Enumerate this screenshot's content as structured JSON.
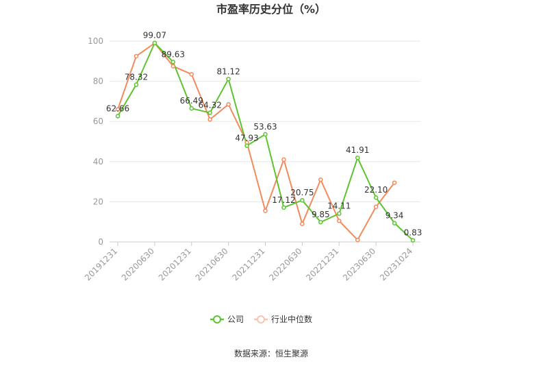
{
  "chart_data": {
    "type": "line",
    "title": "市盈率历史分位（%）",
    "ylim": [
      0,
      100
    ],
    "yticks": [
      0,
      20,
      40,
      60,
      80,
      100
    ],
    "xticks": [
      "20191231",
      "20200630",
      "20201231",
      "20210630",
      "20211231",
      "20220630",
      "20221231",
      "20230630",
      "20231024"
    ],
    "grid": "horizontal",
    "legend_position": "bottom",
    "series": [
      {
        "name": "公司",
        "color": "#5bc42e",
        "x": [
          0,
          0.5,
          1,
          1.5,
          2,
          2.5,
          3,
          3.5,
          4,
          4.5,
          5,
          5.5,
          6,
          6.5,
          7,
          7.5,
          8
        ],
        "values": [
          62.66,
          78.32,
          99.07,
          89.63,
          66.49,
          64.32,
          81.12,
          47.93,
          53.63,
          17.12,
          20.75,
          9.85,
          14.11,
          41.91,
          22.1,
          9.34,
          0.83
        ],
        "labels": [
          "62.66",
          "78.32",
          "99.07",
          "89.63",
          "66.49",
          "64.32",
          "81.12",
          "47.93",
          "53.63",
          "17.12",
          "20.75",
          "9.85",
          "14.11",
          "41.91",
          "22.10",
          "9.34",
          "0.83"
        ]
      },
      {
        "name": "行业中位数",
        "color": "#f28a5c",
        "x": [
          0,
          0.5,
          1,
          1.5,
          2,
          2.5,
          3,
          3.5,
          4,
          4.5,
          5,
          5.5,
          6,
          6.5,
          7,
          7.5
        ],
        "values": [
          66,
          92.5,
          99,
          87.5,
          83.5,
          61,
          68.5,
          49.5,
          15.5,
          41,
          9,
          31,
          10.5,
          1,
          17.5,
          29.5
        ]
      }
    ]
  },
  "source": "数据来源：恒生聚源"
}
